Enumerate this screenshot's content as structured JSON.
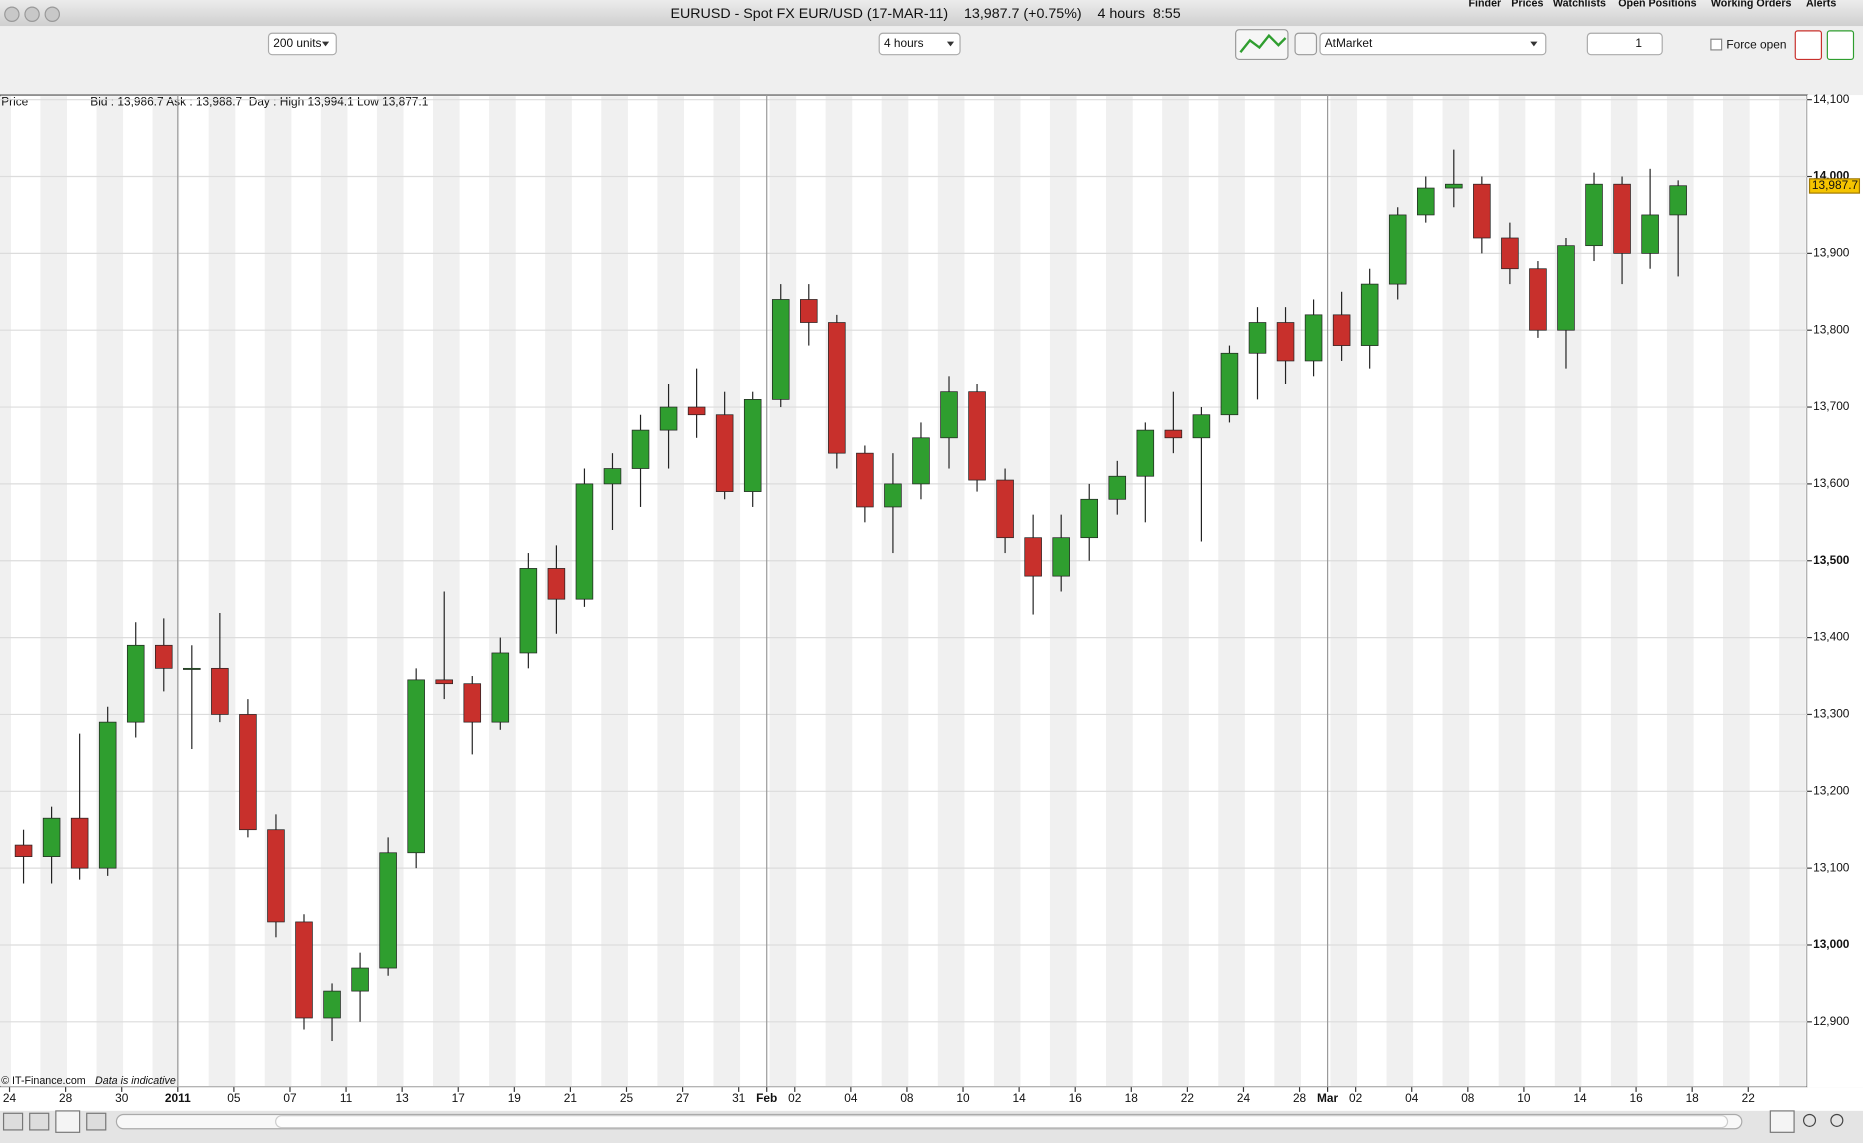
{
  "window": {
    "title": "EURUSD - Spot FX EUR/USD (17-MAR-11)    13,987.7 (+0.75%)    4 hours  8:55",
    "tabs": [
      "Finder",
      "Prices",
      "Watchlists",
      "Open Positions",
      "Working Orders",
      "Alerts"
    ]
  },
  "toolbar": {
    "size": "200 units",
    "interval": "4 hours",
    "order_type": "AtMarket",
    "quantity": "1",
    "force_open": "Force open"
  },
  "chart_data": {
    "type": "candlestick",
    "panel_label": "Price",
    "info": "Bid : 13,986.7 Ask : 13,988.7  Day : High 13,994.1 Low 13,877.1",
    "x": [
      0.5,
      1.5,
      2.5,
      3.5,
      4.5,
      5.5,
      6.5,
      7.5,
      8.5,
      9.5,
      10.5,
      11.5,
      12.5,
      13.5,
      14.5,
      15.5,
      16.5,
      17.5,
      18.5,
      19.5,
      20.5,
      21.5,
      22.5,
      23.5,
      24.5,
      25.5,
      26.5,
      27.5,
      28.5,
      29.5,
      30.5,
      31.5,
      32.5,
      33.5,
      34.5,
      35.5,
      36.5,
      37.5,
      38.5,
      39.5,
      40.5,
      41.5,
      42.5,
      43.5,
      44.5,
      45.5,
      46.5,
      47.5,
      48.5,
      49.5,
      50.5,
      51.5,
      52.5,
      53.5,
      54.5,
      55.5,
      56.5,
      57.5,
      58.5,
      59.5
    ],
    "open": [
      13130,
      13115,
      13165,
      13100,
      13290,
      13390,
      13360,
      13360,
      13300,
      13150,
      13030,
      12905,
      12940,
      12970,
      13120,
      13345,
      13340,
      13290,
      13380,
      13490,
      13450,
      13600,
      13620,
      13670,
      13700,
      13690,
      13590,
      13710,
      13840,
      13810,
      13640,
      13570,
      13600,
      13660,
      13720,
      13605,
      13530,
      13480,
      13530,
      13580,
      13610,
      13670,
      13660,
      13690,
      13770,
      13810,
      13760,
      13820,
      13780,
      13860,
      13950,
      13985,
      13990,
      13920,
      13880,
      13800,
      13910,
      13990,
      13900,
      13950
    ],
    "high": [
      13150,
      13180,
      13275,
      13310,
      13420,
      13425,
      13390,
      13432,
      13320,
      13170,
      13040,
      12950,
      12990,
      13140,
      13360,
      13460,
      13350,
      13400,
      13510,
      13520,
      13620,
      13640,
      13690,
      13730,
      13750,
      13720,
      13720,
      13860,
      13860,
      13820,
      13650,
      13640,
      13680,
      13740,
      13730,
      13620,
      13560,
      13560,
      13600,
      13630,
      13680,
      13720,
      13700,
      13780,
      13830,
      13830,
      13840,
      13850,
      13880,
      13960,
      14000,
      14035,
      14000,
      13940,
      13890,
      13920,
      14005,
      14000,
      14010,
      13995
    ],
    "low": [
      13080,
      13080,
      13085,
      13090,
      13270,
      13330,
      13255,
      13290,
      13140,
      13010,
      12890,
      12875,
      12900,
      12960,
      13100,
      13320,
      13248,
      13280,
      13360,
      13405,
      13440,
      13540,
      13570,
      13620,
      13660,
      13580,
      13570,
      13700,
      13780,
      13620,
      13550,
      13510,
      13580,
      13620,
      13590,
      13510,
      13430,
      13460,
      13500,
      13560,
      13550,
      13640,
      13525,
      13680,
      13710,
      13730,
      13740,
      13760,
      13750,
      13840,
      13940,
      13960,
      13900,
      13860,
      13790,
      13750,
      13890,
      13860,
      13880,
      13870
    ],
    "close": [
      13115,
      13165,
      13100,
      13290,
      13390,
      13360,
      13360,
      13300,
      13150,
      13030,
      12905,
      12940,
      12970,
      13120,
      13345,
      13340,
      13290,
      13380,
      13490,
      13450,
      13600,
      13620,
      13670,
      13700,
      13690,
      13590,
      13710,
      13840,
      13810,
      13640,
      13570,
      13600,
      13660,
      13720,
      13605,
      13530,
      13480,
      13530,
      13580,
      13610,
      13670,
      13660,
      13690,
      13770,
      13810,
      13760,
      13820,
      13780,
      13860,
      13950,
      13985,
      13990,
      13920,
      13880,
      13800,
      13910,
      13990,
      13900,
      13950,
      13988
    ],
    "up_color": "#2f9e2f",
    "down_color": "#c8302c",
    "xlim": [
      -0.34,
      64.1
    ],
    "xticks": [
      {
        "value": 0,
        "label": "24"
      },
      {
        "value": 2,
        "label": "28"
      },
      {
        "value": 4,
        "label": "30"
      },
      {
        "value": 6,
        "label": "2011"
      },
      {
        "value": 8,
        "label": "05"
      },
      {
        "value": 10,
        "label": "07"
      },
      {
        "value": 12,
        "label": "11"
      },
      {
        "value": 14,
        "label": "13"
      },
      {
        "value": 16,
        "label": "17"
      },
      {
        "value": 18,
        "label": "19"
      },
      {
        "value": 20,
        "label": "21"
      },
      {
        "value": 22,
        "label": "25"
      },
      {
        "value": 24,
        "label": "27"
      },
      {
        "value": 26,
        "label": "31"
      },
      {
        "value": 27,
        "label": "Feb"
      },
      {
        "value": 28,
        "label": "02"
      },
      {
        "value": 30,
        "label": "04"
      },
      {
        "value": 32,
        "label": "08"
      },
      {
        "value": 34,
        "label": "10"
      },
      {
        "value": 36,
        "label": "14"
      },
      {
        "value": 38,
        "label": "16"
      },
      {
        "value": 40,
        "label": "18"
      },
      {
        "value": 42,
        "label": "22"
      },
      {
        "value": 44,
        "label": "24"
      },
      {
        "value": 46,
        "label": "28"
      },
      {
        "value": 47,
        "label": "Mar"
      },
      {
        "value": 48,
        "label": "02"
      },
      {
        "value": 50,
        "label": "04"
      },
      {
        "value": 52,
        "label": "08"
      },
      {
        "value": 54,
        "label": "10"
      },
      {
        "value": 56,
        "label": "14"
      },
      {
        "value": 58,
        "label": "16"
      },
      {
        "value": 60,
        "label": "18"
      },
      {
        "value": 62,
        "label": "22"
      }
    ],
    "ylim": [
      12815,
      14106
    ],
    "yticks": [
      {
        "value": 12900,
        "label": "12,900"
      },
      {
        "value": 13000,
        "label": "13,000"
      },
      {
        "value": 13100,
        "label": "13,100"
      },
      {
        "value": 13200,
        "label": "13,200"
      },
      {
        "value": 13300,
        "label": "13,300"
      },
      {
        "value": 13400,
        "label": "13,400"
      },
      {
        "value": 13500,
        "label": "13,500"
      },
      {
        "value": 13600,
        "label": "13,600"
      },
      {
        "value": 13700,
        "label": "13,700"
      },
      {
        "value": 13800,
        "label": "13,800"
      },
      {
        "value": 13900,
        "label": "13,900"
      },
      {
        "value": 14000,
        "label": "14,000"
      },
      {
        "value": 14100,
        "label": "14,100"
      }
    ],
    "grid": true,
    "last_price": {
      "value": 13987.7,
      "label": "13,987.7"
    },
    "footer": "© IT-Finance.com",
    "note": "Data is indicative"
  }
}
